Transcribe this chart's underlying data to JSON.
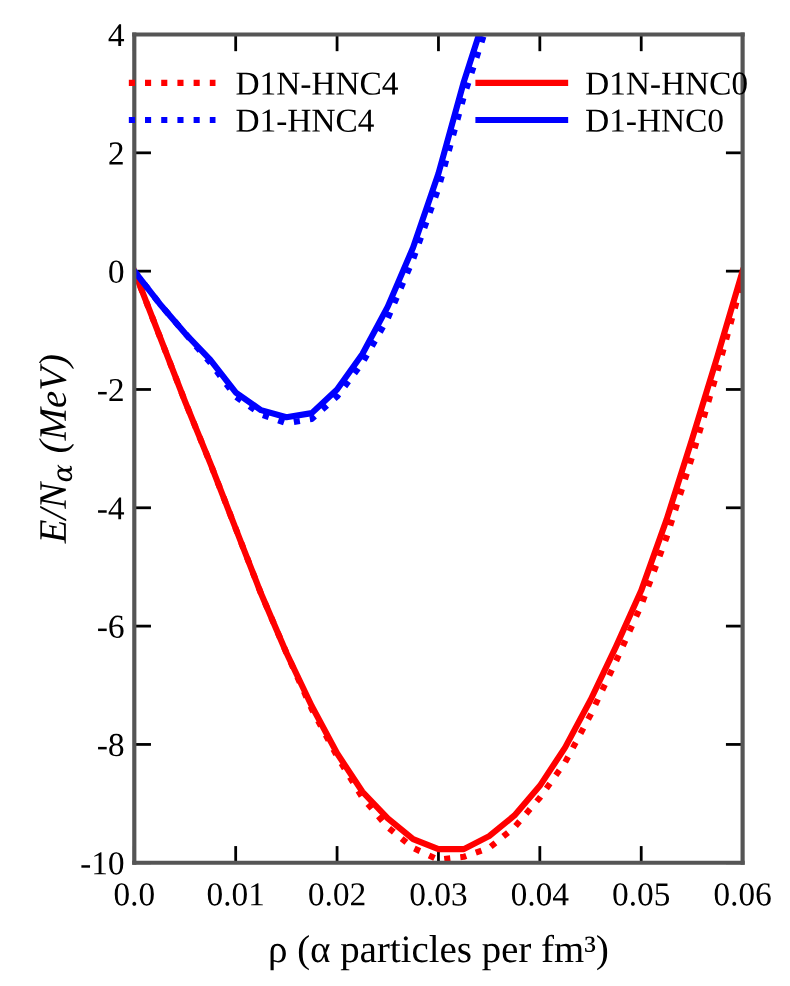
{
  "chart_data": {
    "type": "line",
    "xlabel": "ρ (α particles per fm³)",
    "ylabel": "E/N$_{α}$ (MeV)",
    "xlim": [
      0,
      0.06
    ],
    "xticks": [
      {
        "value": 0,
        "label": "0.0"
      },
      0.01,
      0.02,
      0.03,
      0.04,
      0.05,
      0.06
    ],
    "ylim": [
      -10,
      4
    ],
    "yticks": [
      -10,
      -8,
      -6,
      -4,
      -2,
      0,
      2,
      4
    ],
    "grid": false,
    "legend": "top",
    "marker": "none",
    "series": [
      {
        "name": "D1N-HNC4",
        "color": "#ff0000",
        "line_style": "dotted",
        "x": [
          0,
          0.0025,
          0.005,
          0.0075,
          0.01,
          0.0125,
          0.015,
          0.0175,
          0.02,
          0.0225,
          0.025,
          0.0275,
          0.03,
          0.0325,
          0.035,
          0.0375,
          0.04,
          0.0425,
          0.045,
          0.0475,
          0.05,
          0.0525,
          0.055,
          0.0575,
          0.06
        ],
        "values": [
          0,
          -1.1,
          -2.2,
          -3.25,
          -4.35,
          -5.45,
          -6.45,
          -7.4,
          -8.2,
          -8.9,
          -9.4,
          -9.75,
          -9.95,
          -9.9,
          -9.75,
          -9.4,
          -8.9,
          -8.3,
          -7.5,
          -6.6,
          -5.65,
          -4.5,
          -3.15,
          -1.7,
          -0.15
        ]
      },
      {
        "name": "D1-HNC4",
        "color": "#0000ff",
        "line_style": "dotted",
        "x": [
          0,
          0.0025,
          0.005,
          0.0075,
          0.01,
          0.0125,
          0.015,
          0.0175,
          0.02,
          0.0225,
          0.025,
          0.0275,
          0.03,
          0.0325,
          0.0345
        ],
        "values": [
          0,
          -0.55,
          -1.05,
          -1.55,
          -2.12,
          -2.42,
          -2.57,
          -2.5,
          -2.12,
          -1.55,
          -0.8,
          0.2,
          1.4,
          2.95,
          4
        ]
      },
      {
        "name": "D1N-HNC0",
        "color": "#ff0000",
        "line_style": "solid",
        "x": [
          0,
          0.0025,
          0.005,
          0.0075,
          0.01,
          0.0125,
          0.015,
          0.0175,
          0.02,
          0.0225,
          0.025,
          0.0275,
          0.03,
          0.0325,
          0.035,
          0.0375,
          0.04,
          0.0425,
          0.045,
          0.0475,
          0.05,
          0.0525,
          0.055,
          0.0575,
          0.06
        ],
        "values": [
          0,
          -1.1,
          -2.2,
          -3.25,
          -4.35,
          -5.45,
          -6.45,
          -7.35,
          -8.15,
          -8.8,
          -9.25,
          -9.6,
          -9.77,
          -9.77,
          -9.55,
          -9.2,
          -8.7,
          -8.05,
          -7.25,
          -6.35,
          -5.4,
          -4.2,
          -2.85,
          -1.45,
          0
        ]
      },
      {
        "name": "D1-HNC0",
        "color": "#0000ff",
        "line_style": "solid",
        "x": [
          0,
          0.0025,
          0.005,
          0.0075,
          0.01,
          0.0125,
          0.015,
          0.0175,
          0.02,
          0.0225,
          0.025,
          0.0275,
          0.03,
          0.0325,
          0.034
        ],
        "values": [
          0,
          -0.55,
          -1.05,
          -1.5,
          -2.05,
          -2.35,
          -2.47,
          -2.4,
          -2.0,
          -1.4,
          -0.6,
          0.4,
          1.65,
          3.2,
          4
        ]
      }
    ]
  }
}
